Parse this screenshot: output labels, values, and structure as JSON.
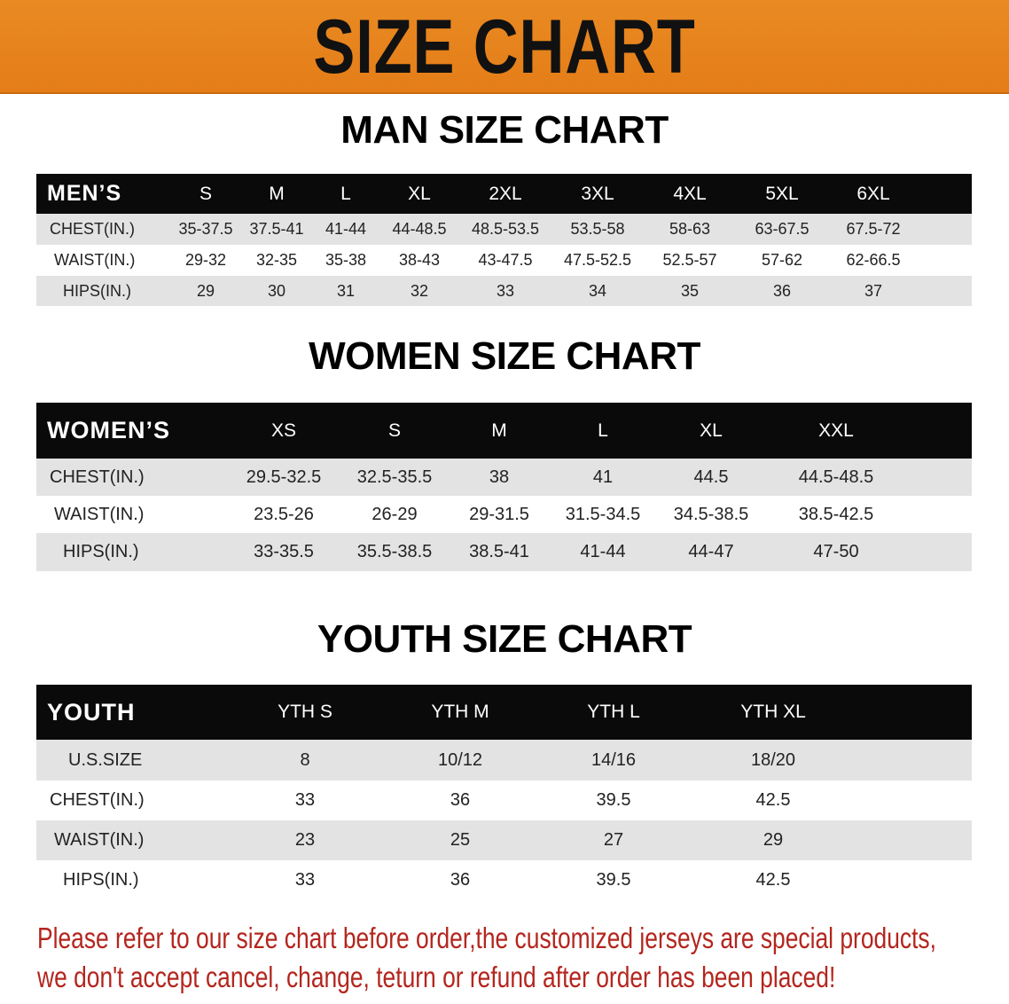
{
  "banner_title": "SIZE CHART",
  "men": {
    "title": "MAN SIZE CHART",
    "header": "MEN’S",
    "sizes": [
      "S",
      "M",
      "L",
      "XL",
      "2XL",
      "3XL",
      "4XL",
      "5XL",
      "6XL"
    ],
    "rows": [
      {
        "label": "CHEST(IN.)",
        "values": [
          "35-37.5",
          "37.5-41",
          "41-44",
          "44-48.5",
          "48.5-53.5",
          "53.5-58",
          "58-63",
          "63-67.5",
          "67.5-72"
        ]
      },
      {
        "label": "WAIST(IN.)",
        "values": [
          "29-32",
          "32-35",
          "35-38",
          "38-43",
          "43-47.5",
          "47.5-52.5",
          "52.5-57",
          "57-62",
          "62-66.5"
        ]
      },
      {
        "label": "HIPS(IN.)",
        "values": [
          "29",
          "30",
          "31",
          "32",
          "33",
          "34",
          "35",
          "36",
          "37"
        ]
      }
    ]
  },
  "women": {
    "title": "WOMEN SIZE CHART",
    "header": "WOMEN’S",
    "sizes": [
      "XS",
      "S",
      "M",
      "L",
      "XL",
      "XXL"
    ],
    "rows": [
      {
        "label": "CHEST(IN.)",
        "values": [
          "29.5-32.5",
          "32.5-35.5",
          "38",
          "41",
          "44.5",
          "44.5-48.5"
        ]
      },
      {
        "label": "WAIST(IN.)",
        "values": [
          "23.5-26",
          "26-29",
          "29-31.5",
          "31.5-34.5",
          "34.5-38.5",
          "38.5-42.5"
        ]
      },
      {
        "label": "HIPS(IN.)",
        "values": [
          "33-35.5",
          "35.5-38.5",
          "38.5-41",
          "41-44",
          "44-47",
          "47-50"
        ]
      }
    ]
  },
  "youth": {
    "title": "YOUTH SIZE CHART",
    "header": "YOUTH",
    "sizes": [
      "YTH S",
      "YTH M",
      "YTH L",
      "YTH XL"
    ],
    "rows": [
      {
        "label": "U.S.SIZE",
        "values": [
          "8",
          "10/12",
          "14/16",
          "18/20"
        ]
      },
      {
        "label": "CHEST(IN.)",
        "values": [
          "33",
          "36",
          "39.5",
          "42.5"
        ]
      },
      {
        "label": "WAIST(IN.)",
        "values": [
          "23",
          "25",
          "27",
          "29"
        ]
      },
      {
        "label": "HIPS(IN.)",
        "values": [
          "33",
          "36",
          "39.5",
          "42.5"
        ]
      }
    ]
  },
  "note": {
    "line1": "Please refer to our size chart before order,the customized jerseys are special products,",
    "line2": "we don't accept cancel, change, teturn or refund after order has been placed!"
  },
  "colors": {
    "banner": "#e6831c",
    "header": "#0a0a0a",
    "stripe": "#e3e3e3",
    "note": "#b3261e"
  }
}
